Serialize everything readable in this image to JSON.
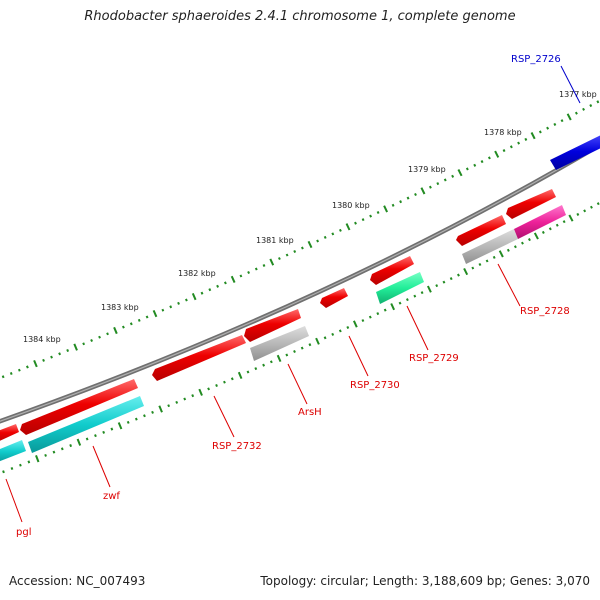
{
  "title": "Rhodobacter sphaeroides 2.4.1 chromosome 1, complete genome",
  "footer": {
    "accession": "Accession: NC_007493",
    "summary": "Topology: circular; Length: 3,188,609 bp; Genes: 3,070"
  },
  "colors": {
    "backbone": "#7a7a7a",
    "tick": "#228b22",
    "label_red": "#dd0000",
    "label_blue": "#0000cc",
    "cds_red": "#ee0000",
    "cds_blue": "#0000dd",
    "cog_cyan": "#11cccc",
    "cog_gray": "#b8b8b8",
    "cog_green": "#22ee99",
    "cog_pink": "#ee2299"
  },
  "kbp_ticks": [
    "1377 kbp",
    "1378 kbp",
    "1379 kbp",
    "1380 kbp",
    "1381 kbp",
    "1382 kbp",
    "1383 kbp",
    "1384 kbp"
  ],
  "genes": [
    {
      "id": "RSP_2726",
      "label": "RSP_2726",
      "color": "blue"
    },
    {
      "id": "RSP_2728",
      "label": "RSP_2728",
      "color": "red"
    },
    {
      "id": "RSP_2729",
      "label": "RSP_2729",
      "color": "red"
    },
    {
      "id": "RSP_2730",
      "label": "RSP_2730",
      "color": "red"
    },
    {
      "id": "ArsH",
      "label": "ArsH",
      "color": "red"
    },
    {
      "id": "RSP_2732",
      "label": "RSP_2732",
      "color": "red"
    },
    {
      "id": "zwf",
      "label": "zwf",
      "color": "red"
    },
    {
      "id": "pgl",
      "label": "pgl",
      "color": "red"
    }
  ]
}
